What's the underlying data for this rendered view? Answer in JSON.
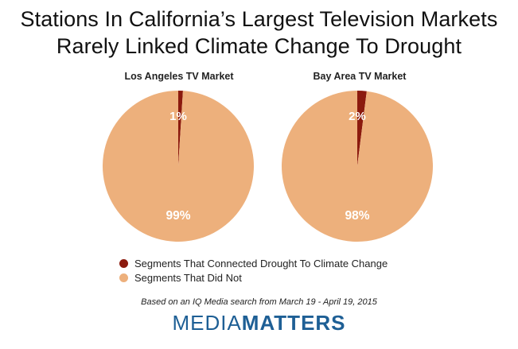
{
  "title": {
    "line1": "Stations In California’s Largest Television Markets",
    "line2": "Rarely Linked Climate Change To Drought"
  },
  "chart_data": [
    {
      "type": "pie",
      "title": "Los Angeles TV Market",
      "labels": [
        "Segments That Connected Drought To Climate Change",
        "Segments That Did Not"
      ],
      "values": [
        1,
        99
      ],
      "value_labels": [
        "1%",
        "99%"
      ],
      "colors": [
        "#8b1a0e",
        "#edb07c"
      ]
    },
    {
      "type": "pie",
      "title": "Bay Area TV Market",
      "labels": [
        "Segments That Connected Drought To Climate Change",
        "Segments That Did Not"
      ],
      "values": [
        2,
        98
      ],
      "value_labels": [
        "2%",
        "98%"
      ],
      "colors": [
        "#8b1a0e",
        "#edb07c"
      ]
    }
  ],
  "legend": {
    "items": [
      {
        "label": "Segments That Connected Drought To Climate Change",
        "color": "#8b1a0e"
      },
      {
        "label": "Segments That Did Not",
        "color": "#edb07c"
      }
    ]
  },
  "source": "Based on an IQ Media search from March 19 - April 19, 2015",
  "brand": {
    "part1": "MEDIA",
    "part2": "MATTERS",
    "color": "#1e5f95"
  }
}
